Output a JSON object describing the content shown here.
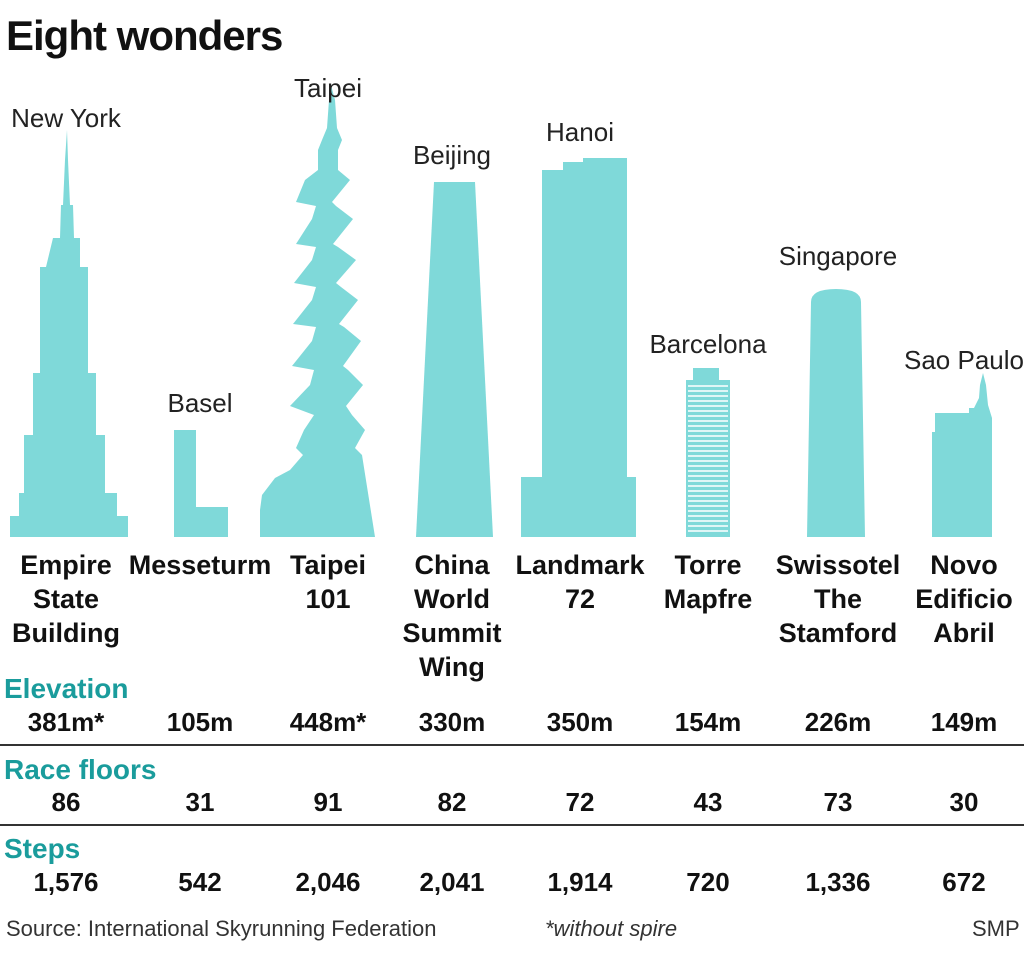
{
  "title": "Eight wonders",
  "colors": {
    "building": "#7fd9d9",
    "accent": "#1a9c9c"
  },
  "sections": {
    "elevation": "Elevation",
    "floors": "Race floors",
    "steps": "Steps"
  },
  "buildings": [
    {
      "name_lines": [
        "Empire",
        "State",
        "Building"
      ],
      "city": "New York",
      "elevation": "381m*",
      "floors": "86",
      "steps": "1,576"
    },
    {
      "name_lines": [
        "Messeturm"
      ],
      "city": "Basel",
      "elevation": "105m",
      "floors": "31",
      "steps": "542"
    },
    {
      "name_lines": [
        "Taipei",
        "101"
      ],
      "city": "Taipei",
      "elevation": "448m*",
      "floors": "91",
      "steps": "2,046"
    },
    {
      "name_lines": [
        "China",
        "World",
        "Summit",
        "Wing"
      ],
      "city": "Beijing",
      "elevation": "330m",
      "floors": "82",
      "steps": "2,041"
    },
    {
      "name_lines": [
        "Landmark",
        "72"
      ],
      "city": "Hanoi",
      "elevation": "350m",
      "floors": "72",
      "steps": "1,914"
    },
    {
      "name_lines": [
        "Torre",
        "Mapfre"
      ],
      "city": "Barcelona",
      "elevation": "154m",
      "floors": "43",
      "steps": "720"
    },
    {
      "name_lines": [
        "Swissotel",
        "The",
        "Stamford"
      ],
      "city": "Singapore",
      "elevation": "226m",
      "floors": "73",
      "steps": "1,336"
    },
    {
      "name_lines": [
        "Novo",
        "Edificio",
        "Abril"
      ],
      "city": "Sao Paulo",
      "elevation": "149m",
      "floors": "30",
      "steps": "672"
    }
  ],
  "footer": {
    "source": "Source: International Skyrunning Federation",
    "note": "*without spire",
    "credit": "SMP"
  }
}
